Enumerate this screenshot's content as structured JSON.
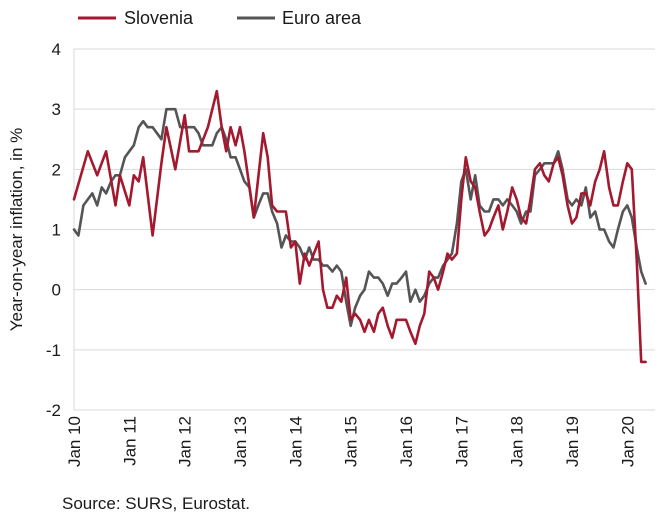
{
  "source": "Source: SURS, Eurostat.",
  "chart_data": {
    "type": "line",
    "title": "",
    "xlabel": "",
    "ylabel": "Year-on-year inflation, in %",
    "ylim": [
      -2,
      4
    ],
    "yticks": [
      "4",
      "3",
      "2",
      "1",
      "0",
      "-1",
      "-2"
    ],
    "xlim": [
      2010,
      2020.5
    ],
    "xticks": [
      {
        "label": "Jan 10",
        "x": 2010
      },
      {
        "label": "Jan 11",
        "x": 2011
      },
      {
        "label": "Jan 12",
        "x": 2012
      },
      {
        "label": "Jan 13",
        "x": 2013
      },
      {
        "label": "Jan 14",
        "x": 2014
      },
      {
        "label": "Jan 15",
        "x": 2015
      },
      {
        "label": "Jan 16",
        "x": 2016
      },
      {
        "label": "Jan 17",
        "x": 2017
      },
      {
        "label": "Jan 18",
        "x": 2018
      },
      {
        "label": "Jan 19",
        "x": 2019
      },
      {
        "label": "Jan 20",
        "x": 2020
      }
    ],
    "grid": "horizontal",
    "legend": "top-left",
    "series": [
      {
        "name": "Slovenia",
        "color": "#a3192f",
        "points": [
          [
            2010.0,
            1.5
          ],
          [
            2010.25,
            2.3
          ],
          [
            2010.42,
            1.9
          ],
          [
            2010.58,
            2.3
          ],
          [
            2010.75,
            1.4
          ],
          [
            2010.83,
            1.9
          ],
          [
            2011.0,
            1.4
          ],
          [
            2011.08,
            1.9
          ],
          [
            2011.17,
            1.8
          ],
          [
            2011.25,
            2.2
          ],
          [
            2011.42,
            0.9
          ],
          [
            2011.58,
            2.1
          ],
          [
            2011.67,
            2.7
          ],
          [
            2011.83,
            2.0
          ],
          [
            2012.0,
            2.9
          ],
          [
            2012.08,
            2.3
          ],
          [
            2012.25,
            2.3
          ],
          [
            2012.42,
            2.7
          ],
          [
            2012.58,
            3.3
          ],
          [
            2012.67,
            2.7
          ],
          [
            2012.75,
            2.3
          ],
          [
            2012.83,
            2.7
          ],
          [
            2012.92,
            2.4
          ],
          [
            2013.0,
            2.7
          ],
          [
            2013.08,
            2.3
          ],
          [
            2013.25,
            1.2
          ],
          [
            2013.42,
            2.6
          ],
          [
            2013.5,
            2.2
          ],
          [
            2013.58,
            1.4
          ],
          [
            2013.67,
            1.3
          ],
          [
            2013.83,
            1.3
          ],
          [
            2013.92,
            0.7
          ],
          [
            2014.0,
            0.8
          ],
          [
            2014.08,
            0.1
          ],
          [
            2014.17,
            0.6
          ],
          [
            2014.25,
            0.4
          ],
          [
            2014.42,
            0.8
          ],
          [
            2014.5,
            0.0
          ],
          [
            2014.58,
            -0.3
          ],
          [
            2014.67,
            -0.3
          ],
          [
            2014.75,
            -0.1
          ],
          [
            2014.83,
            -0.2
          ],
          [
            2014.92,
            0.2
          ],
          [
            2015.0,
            -0.5
          ],
          [
            2015.08,
            -0.4
          ],
          [
            2015.17,
            -0.5
          ],
          [
            2015.25,
            -0.7
          ],
          [
            2015.33,
            -0.5
          ],
          [
            2015.42,
            -0.7
          ],
          [
            2015.5,
            -0.4
          ],
          [
            2015.58,
            -0.3
          ],
          [
            2015.67,
            -0.6
          ],
          [
            2015.75,
            -0.8
          ],
          [
            2015.83,
            -0.5
          ],
          [
            2016.0,
            -0.5
          ],
          [
            2016.08,
            -0.7
          ],
          [
            2016.17,
            -0.9
          ],
          [
            2016.25,
            -0.6
          ],
          [
            2016.33,
            -0.4
          ],
          [
            2016.42,
            0.3
          ],
          [
            2016.5,
            0.2
          ],
          [
            2016.58,
            0.0
          ],
          [
            2016.67,
            0.3
          ],
          [
            2016.75,
            0.6
          ],
          [
            2016.83,
            0.5
          ],
          [
            2016.92,
            0.6
          ],
          [
            2017.0,
            1.5
          ],
          [
            2017.08,
            2.2
          ],
          [
            2017.17,
            1.8
          ],
          [
            2017.25,
            1.7
          ],
          [
            2017.33,
            1.3
          ],
          [
            2017.42,
            0.9
          ],
          [
            2017.5,
            1.0
          ],
          [
            2017.58,
            1.2
          ],
          [
            2017.67,
            1.4
          ],
          [
            2017.75,
            1.0
          ],
          [
            2017.83,
            1.3
          ],
          [
            2017.92,
            1.7
          ],
          [
            2018.0,
            1.5
          ],
          [
            2018.08,
            1.2
          ],
          [
            2018.17,
            1.1
          ],
          [
            2018.25,
            1.5
          ],
          [
            2018.33,
            2.0
          ],
          [
            2018.42,
            2.1
          ],
          [
            2018.5,
            1.9
          ],
          [
            2018.58,
            1.8
          ],
          [
            2018.67,
            2.1
          ],
          [
            2018.75,
            2.2
          ],
          [
            2018.83,
            1.9
          ],
          [
            2018.92,
            1.4
          ],
          [
            2019.0,
            1.1
          ],
          [
            2019.08,
            1.2
          ],
          [
            2019.17,
            1.6
          ],
          [
            2019.25,
            1.6
          ],
          [
            2019.33,
            1.4
          ],
          [
            2019.42,
            1.8
          ],
          [
            2019.5,
            2.0
          ],
          [
            2019.58,
            2.3
          ],
          [
            2019.67,
            1.7
          ],
          [
            2019.75,
            1.4
          ],
          [
            2019.83,
            1.4
          ],
          [
            2019.92,
            1.8
          ],
          [
            2020.0,
            2.1
          ],
          [
            2020.08,
            2.0
          ],
          [
            2020.17,
            0.5
          ],
          [
            2020.25,
            -1.2
          ],
          [
            2020.33,
            -1.2
          ]
        ]
      },
      {
        "name": "Euro area",
        "color": "#555555",
        "points": [
          [
            2010.0,
            1.0
          ],
          [
            2010.08,
            0.9
          ],
          [
            2010.17,
            1.4
          ],
          [
            2010.33,
            1.6
          ],
          [
            2010.42,
            1.4
          ],
          [
            2010.5,
            1.7
          ],
          [
            2010.58,
            1.6
          ],
          [
            2010.67,
            1.8
          ],
          [
            2010.75,
            1.9
          ],
          [
            2010.83,
            1.9
          ],
          [
            2010.92,
            2.2
          ],
          [
            2011.0,
            2.3
          ],
          [
            2011.08,
            2.4
          ],
          [
            2011.17,
            2.7
          ],
          [
            2011.25,
            2.8
          ],
          [
            2011.33,
            2.7
          ],
          [
            2011.42,
            2.7
          ],
          [
            2011.5,
            2.6
          ],
          [
            2011.58,
            2.5
          ],
          [
            2011.67,
            3.0
          ],
          [
            2011.75,
            3.0
          ],
          [
            2011.83,
            3.0
          ],
          [
            2011.92,
            2.7
          ],
          [
            2012.0,
            2.7
          ],
          [
            2012.08,
            2.7
          ],
          [
            2012.17,
            2.7
          ],
          [
            2012.25,
            2.6
          ],
          [
            2012.33,
            2.4
          ],
          [
            2012.42,
            2.4
          ],
          [
            2012.5,
            2.4
          ],
          [
            2012.58,
            2.6
          ],
          [
            2012.67,
            2.7
          ],
          [
            2012.75,
            2.5
          ],
          [
            2012.83,
            2.2
          ],
          [
            2012.92,
            2.2
          ],
          [
            2013.0,
            2.0
          ],
          [
            2013.08,
            1.8
          ],
          [
            2013.17,
            1.7
          ],
          [
            2013.25,
            1.2
          ],
          [
            2013.33,
            1.4
          ],
          [
            2013.42,
            1.6
          ],
          [
            2013.5,
            1.6
          ],
          [
            2013.58,
            1.3
          ],
          [
            2013.67,
            1.1
          ],
          [
            2013.75,
            0.7
          ],
          [
            2013.83,
            0.9
          ],
          [
            2013.92,
            0.8
          ],
          [
            2014.0,
            0.8
          ],
          [
            2014.08,
            0.7
          ],
          [
            2014.17,
            0.5
          ],
          [
            2014.25,
            0.7
          ],
          [
            2014.33,
            0.5
          ],
          [
            2014.42,
            0.5
          ],
          [
            2014.5,
            0.4
          ],
          [
            2014.58,
            0.4
          ],
          [
            2014.67,
            0.3
          ],
          [
            2014.75,
            0.4
          ],
          [
            2014.83,
            0.3
          ],
          [
            2014.92,
            -0.2
          ],
          [
            2015.0,
            -0.6
          ],
          [
            2015.08,
            -0.3
          ],
          [
            2015.17,
            -0.1
          ],
          [
            2015.25,
            0.0
          ],
          [
            2015.33,
            0.3
          ],
          [
            2015.42,
            0.2
          ],
          [
            2015.5,
            0.2
          ],
          [
            2015.58,
            0.1
          ],
          [
            2015.67,
            -0.1
          ],
          [
            2015.75,
            0.1
          ],
          [
            2015.83,
            0.1
          ],
          [
            2015.92,
            0.2
          ],
          [
            2016.0,
            0.3
          ],
          [
            2016.08,
            -0.2
          ],
          [
            2016.17,
            0.0
          ],
          [
            2016.25,
            -0.2
          ],
          [
            2016.33,
            -0.1
          ],
          [
            2016.42,
            0.1
          ],
          [
            2016.5,
            0.2
          ],
          [
            2016.58,
            0.2
          ],
          [
            2016.67,
            0.4
          ],
          [
            2016.75,
            0.5
          ],
          [
            2016.83,
            0.6
          ],
          [
            2016.92,
            1.1
          ],
          [
            2017.0,
            1.8
          ],
          [
            2017.08,
            2.0
          ],
          [
            2017.17,
            1.5
          ],
          [
            2017.25,
            1.9
          ],
          [
            2017.33,
            1.4
          ],
          [
            2017.42,
            1.3
          ],
          [
            2017.5,
            1.3
          ],
          [
            2017.58,
            1.5
          ],
          [
            2017.67,
            1.5
          ],
          [
            2017.75,
            1.4
          ],
          [
            2017.83,
            1.5
          ],
          [
            2017.92,
            1.4
          ],
          [
            2018.0,
            1.3
          ],
          [
            2018.08,
            1.1
          ],
          [
            2018.17,
            1.3
          ],
          [
            2018.25,
            1.3
          ],
          [
            2018.33,
            1.9
          ],
          [
            2018.42,
            2.0
          ],
          [
            2018.5,
            2.1
          ],
          [
            2018.58,
            2.1
          ],
          [
            2018.67,
            2.1
          ],
          [
            2018.75,
            2.3
          ],
          [
            2018.83,
            2.0
          ],
          [
            2018.92,
            1.5
          ],
          [
            2019.0,
            1.4
          ],
          [
            2019.08,
            1.5
          ],
          [
            2019.17,
            1.4
          ],
          [
            2019.25,
            1.7
          ],
          [
            2019.33,
            1.2
          ],
          [
            2019.42,
            1.3
          ],
          [
            2019.5,
            1.0
          ],
          [
            2019.58,
            1.0
          ],
          [
            2019.67,
            0.8
          ],
          [
            2019.75,
            0.7
          ],
          [
            2019.83,
            1.0
          ],
          [
            2019.92,
            1.3
          ],
          [
            2020.0,
            1.4
          ],
          [
            2020.08,
            1.2
          ],
          [
            2020.17,
            0.7
          ],
          [
            2020.25,
            0.3
          ],
          [
            2020.33,
            0.1
          ]
        ]
      }
    ]
  }
}
